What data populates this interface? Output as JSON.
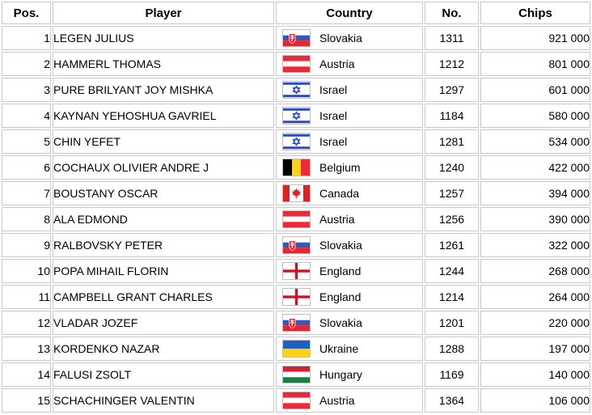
{
  "table": {
    "headers": {
      "pos": "Pos.",
      "player": "Player",
      "country": "Country",
      "no": "No.",
      "chips": "Chips"
    },
    "rows": [
      {
        "pos": "1",
        "player": "LEGEN JULIUS",
        "country": "Slovakia",
        "flag": "slovakia",
        "no": "1311",
        "chips": "921 000"
      },
      {
        "pos": "2",
        "player": "HAMMERL THOMAS",
        "country": "Austria",
        "flag": "austria",
        "no": "1212",
        "chips": "801 000"
      },
      {
        "pos": "3",
        "player": "PURE BRILYANT JOY MISHKA",
        "country": "Israel",
        "flag": "israel",
        "no": "1297",
        "chips": "601 000"
      },
      {
        "pos": "4",
        "player": "KAYNAN YEHOSHUA GAVRIEL",
        "country": "Israel",
        "flag": "israel",
        "no": "1184",
        "chips": "580 000"
      },
      {
        "pos": "5",
        "player": "CHIN YEFET",
        "country": "Israel",
        "flag": "israel",
        "no": "1281",
        "chips": "534 000"
      },
      {
        "pos": "6",
        "player": "COCHAUX OLIVIER ANDRE J",
        "country": "Belgium",
        "flag": "belgium",
        "no": "1240",
        "chips": "422 000"
      },
      {
        "pos": "7",
        "player": "BOUSTANY OSCAR",
        "country": "Canada",
        "flag": "canada",
        "no": "1257",
        "chips": "394 000"
      },
      {
        "pos": "8",
        "player": "ALA EDMOND",
        "country": "Austria",
        "flag": "austria",
        "no": "1256",
        "chips": "390 000"
      },
      {
        "pos": "9",
        "player": "RALBOVSKY PETER",
        "country": "Slovakia",
        "flag": "slovakia",
        "no": "1261",
        "chips": "322 000"
      },
      {
        "pos": "10",
        "player": "POPA MIHAIL FLORIN",
        "country": "England",
        "flag": "england",
        "no": "1244",
        "chips": "268 000"
      },
      {
        "pos": "11",
        "player": "CAMPBELL GRANT CHARLES",
        "country": "England",
        "flag": "england",
        "no": "1214",
        "chips": "264 000"
      },
      {
        "pos": "12",
        "player": "VLADAR JOZEF",
        "country": "Slovakia",
        "flag": "slovakia",
        "no": "1201",
        "chips": "220 000"
      },
      {
        "pos": "13",
        "player": "KORDENKO NAZAR",
        "country": "Ukraine",
        "flag": "ukraine",
        "no": "1288",
        "chips": "197 000"
      },
      {
        "pos": "14",
        "player": "FALUSI ZSOLT",
        "country": "Hungary",
        "flag": "hungary",
        "no": "1169",
        "chips": "140 000"
      },
      {
        "pos": "15",
        "player": "SCHACHINGER VALENTIN",
        "country": "Austria",
        "flag": "austria",
        "no": "1364",
        "chips": "106 000"
      }
    ]
  },
  "colors": {
    "cell_border": "#c9c9c9",
    "flag_border": "#bfbfbf",
    "text": "#000000",
    "background": "#ffffff"
  }
}
